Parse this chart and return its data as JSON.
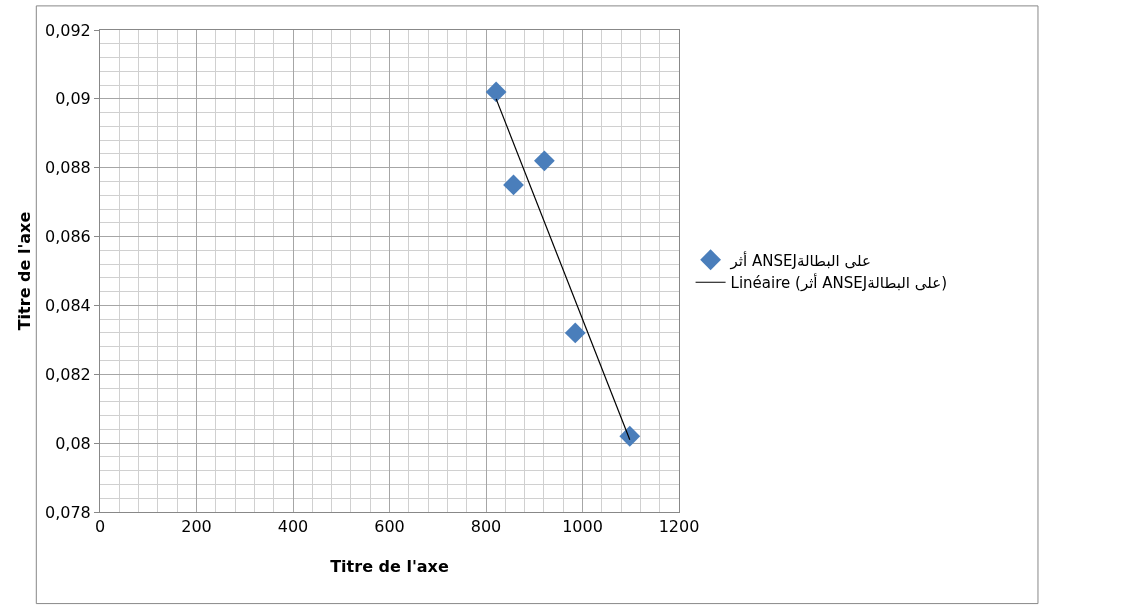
{
  "chart_data": {
    "type": "scatter",
    "xlabel": "Titre de l'axe",
    "ylabel": "Titre de l'axe",
    "xlim": [
      0,
      1200
    ],
    "xticks": [
      0,
      200,
      400,
      600,
      800,
      1000,
      1200
    ],
    "ylim": [
      0.078,
      0.092
    ],
    "yticks": [
      {
        "value": 0.078,
        "label": "0,078"
      },
      {
        "value": 0.08,
        "label": "0,08"
      },
      {
        "value": 0.082,
        "label": "0,082"
      },
      {
        "value": 0.084,
        "label": "0,084"
      },
      {
        "value": 0.086,
        "label": "0,086"
      },
      {
        "value": 0.088,
        "label": "0,088"
      },
      {
        "value": 0.09,
        "label": "0,09"
      },
      {
        "value": 0.092,
        "label": "0,092"
      }
    ],
    "grid": true,
    "legend": "right",
    "series": [
      {
        "name": "أثر ANSEJعلى البطالة",
        "color": "#4a7ebb",
        "marker": "diamond",
        "x": [
          821,
          857,
          921,
          985,
          1098
        ],
        "values": [
          0.0902,
          0.0875,
          0.0882,
          0.0832,
          0.0802
        ]
      },
      {
        "name": "Linéaire (أثر ANSEJعلى البطالة)",
        "type": "line",
        "color": "#000000",
        "x": [
          821,
          1098
        ],
        "values": [
          0.09,
          0.0801
        ]
      }
    ]
  }
}
